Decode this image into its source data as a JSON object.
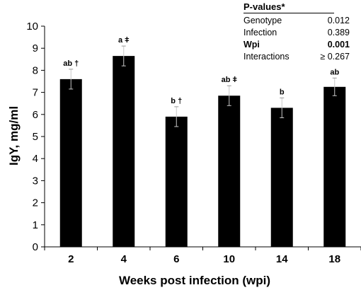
{
  "chart_data": {
    "type": "bar",
    "categories": [
      "2",
      "4",
      "6",
      "10",
      "14",
      "18"
    ],
    "values": [
      7.6,
      8.65,
      5.9,
      6.85,
      6.3,
      7.25
    ],
    "errors": [
      0.45,
      0.45,
      0.45,
      0.45,
      0.45,
      0.4
    ],
    "bar_labels": [
      "ab †",
      "a ǂ",
      "b †",
      "ab ǂ",
      "b",
      "ab"
    ],
    "xlabel": "Weeks post infection (wpi)",
    "ylabel": "IgY, mg/ml",
    "ylim": [
      0,
      10
    ],
    "yticks": [
      "0",
      "1",
      "2",
      "3",
      "4",
      "5",
      "6",
      "7",
      "8",
      "9",
      "10"
    ],
    "bar_color": "#000000",
    "grid": false,
    "pvalues": {
      "title": "P-values*",
      "rows": [
        {
          "name": "Genotype",
          "value": "0.012",
          "bold": false
        },
        {
          "name": "Infection",
          "value": "0.389",
          "bold": false
        },
        {
          "name": "Wpi",
          "value": "0.001",
          "bold": true
        },
        {
          "name": "Interactions",
          "value": "≥ 0.267",
          "bold": false
        }
      ]
    }
  }
}
